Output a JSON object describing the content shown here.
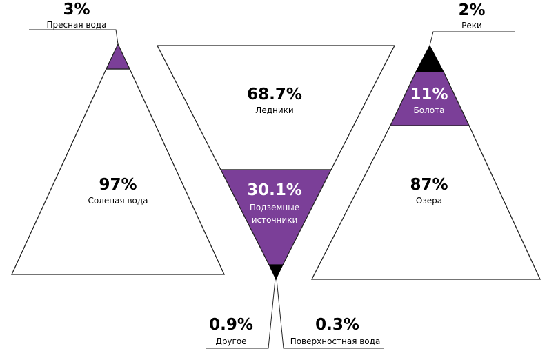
{
  "colors": {
    "accent": "#7b3f98",
    "dark": "#000000",
    "background": "#ffffff",
    "outline": "#222222"
  },
  "left": {
    "fresh_pct": "3%",
    "fresh_label": "Пресная вода",
    "salt_pct": "97%",
    "salt_label": "Соленая вода"
  },
  "middle": {
    "glaciers_pct": "68.7%",
    "glaciers_label": "Ледники",
    "ground_pct": "30.1%",
    "ground_label_1": "Подземные",
    "ground_label_2": "источники",
    "other_pct": "0.9%",
    "other_label": "Другое",
    "surface_pct": "0.3%",
    "surface_label": "Поверхностная вода"
  },
  "right": {
    "rivers_pct": "2%",
    "rivers_label": "Реки",
    "swamps_pct": "11%",
    "swamps_label": "Болота",
    "lakes_pct": "87%",
    "lakes_label": "Озера"
  }
}
